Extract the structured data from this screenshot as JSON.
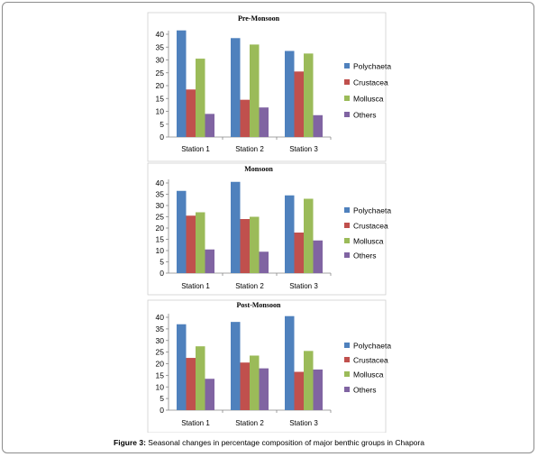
{
  "chart_data": [
    {
      "type": "bar",
      "title": "Pre-Monsoon",
      "categories": [
        "Station 1",
        "Station 2",
        "Station 3"
      ],
      "ylim": [
        0,
        45
      ],
      "yticks": [
        0,
        5,
        10,
        15,
        20,
        25,
        30,
        35,
        40
      ],
      "legend": "right",
      "series": [
        {
          "name": "Polychaeta",
          "color": "#4f81bd",
          "values": [
            41.5,
            38.5,
            33.5
          ]
        },
        {
          "name": "Crustacea",
          "color": "#c0504d",
          "values": [
            18.5,
            14.5,
            25.5
          ]
        },
        {
          "name": "Mollusca",
          "color": "#9bbb59",
          "values": [
            30.5,
            36,
            32.5
          ]
        },
        {
          "name": "Others",
          "color": "#8064a2",
          "values": [
            9,
            11.5,
            8.5
          ]
        }
      ]
    },
    {
      "type": "bar",
      "title": "Monsoon",
      "categories": [
        "Station 1",
        "Station 2",
        "Station 3"
      ],
      "ylim": [
        0,
        42
      ],
      "yticks": [
        0,
        5,
        10,
        15,
        20,
        25,
        30,
        35,
        40
      ],
      "legend": "right",
      "series": [
        {
          "name": "Polychaeta",
          "color": "#4f81bd",
          "values": [
            36.5,
            40.5,
            34.5
          ]
        },
        {
          "name": "Crustacea",
          "color": "#c0504d",
          "values": [
            25.5,
            24,
            18
          ]
        },
        {
          "name": "Mollusca",
          "color": "#9bbb59",
          "values": [
            27,
            25,
            33
          ]
        },
        {
          "name": "Others",
          "color": "#8064a2",
          "values": [
            10.5,
            9.5,
            14.5
          ]
        }
      ]
    },
    {
      "type": "bar",
      "title": "Post-Monsoon",
      "categories": [
        "Station 1",
        "Station 2",
        "Station 3"
      ],
      "ylim": [
        0,
        42
      ],
      "yticks": [
        0,
        5,
        10,
        15,
        20,
        25,
        30,
        35,
        40
      ],
      "legend": "right",
      "series": [
        {
          "name": "Polychaeta",
          "color": "#4f81bd",
          "values": [
            37,
            38,
            40.5
          ]
        },
        {
          "name": "Crustacea",
          "color": "#c0504d",
          "values": [
            22.5,
            20.5,
            16.5
          ]
        },
        {
          "name": "Mollusca",
          "color": "#9bbb59",
          "values": [
            27.5,
            23.5,
            25.5
          ]
        },
        {
          "name": "Others",
          "color": "#8064a2",
          "values": [
            13.5,
            18,
            17.5
          ]
        }
      ]
    }
  ],
  "caption": {
    "label": "Figure 3:",
    "text": " Seasonal changes in percentage composition of major benthic groups in Chapora"
  }
}
